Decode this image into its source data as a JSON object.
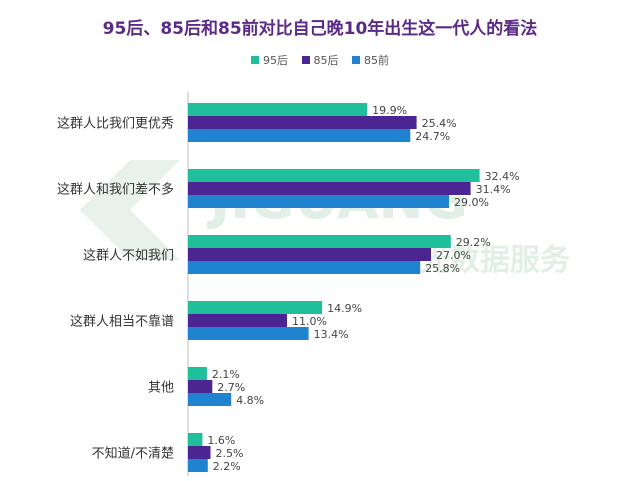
{
  "chart_data": {
    "type": "bar",
    "orientation": "horizontal",
    "title": "95后、85后和85前对比自己晚10年出生这一代人的看法",
    "categories": [
      "这群人比我们更优秀",
      "这群人和我们差不多",
      "这群人不如我们",
      "这群人相当不靠谱",
      "其他",
      "不知道/不清楚"
    ],
    "series": [
      {
        "name": "95后",
        "color": "#1ebf9a",
        "values": [
          19.9,
          32.4,
          29.2,
          14.9,
          2.1,
          1.6
        ]
      },
      {
        "name": "85后",
        "color": "#4b2692",
        "values": [
          25.4,
          31.4,
          27.0,
          11.0,
          2.7,
          2.5
        ]
      },
      {
        "name": "85前",
        "color": "#1f83d0",
        "values": [
          24.7,
          29.0,
          25.8,
          13.4,
          4.8,
          2.2
        ]
      }
    ],
    "value_suffix": "%",
    "legend_position": "top-center",
    "grid": false,
    "xlim": [
      0,
      35
    ]
  },
  "watermark": {
    "brand": "JIGUANG",
    "subtitle": "极光数据服务"
  }
}
